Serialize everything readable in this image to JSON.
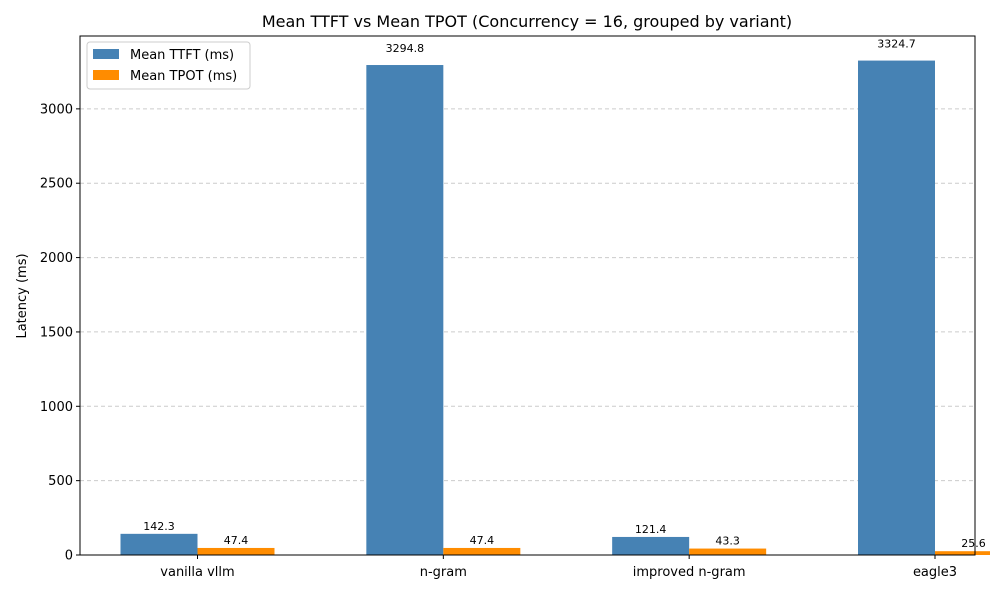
{
  "chart_data": {
    "type": "bar",
    "title": "Mean TTFT vs Mean TPOT (Concurrency = 16, grouped by variant)",
    "xlabel": "",
    "ylabel": "Latency (ms)",
    "categories": [
      "vanilla vllm",
      "n-gram",
      "improved n-gram",
      "eagle3"
    ],
    "series": [
      {
        "name": "Mean TTFT (ms)",
        "color": "#4682b4",
        "values": [
          142.3,
          3294.8,
          121.4,
          3324.7
        ],
        "labels": [
          "142.3",
          "3294.8",
          "121.4",
          "3324.7"
        ]
      },
      {
        "name": "Mean TPOT (ms)",
        "color": "#ff8c00",
        "values": [
          47.4,
          47.4,
          43.3,
          25.6
        ],
        "labels": [
          "47.4",
          "47.4",
          "43.3",
          "25.6"
        ]
      }
    ],
    "ylim": [
      0,
      3490
    ],
    "yticks": [
      0,
      500,
      1000,
      1500,
      2000,
      2500,
      3000
    ],
    "grid": true,
    "legend_position": "top-left"
  }
}
